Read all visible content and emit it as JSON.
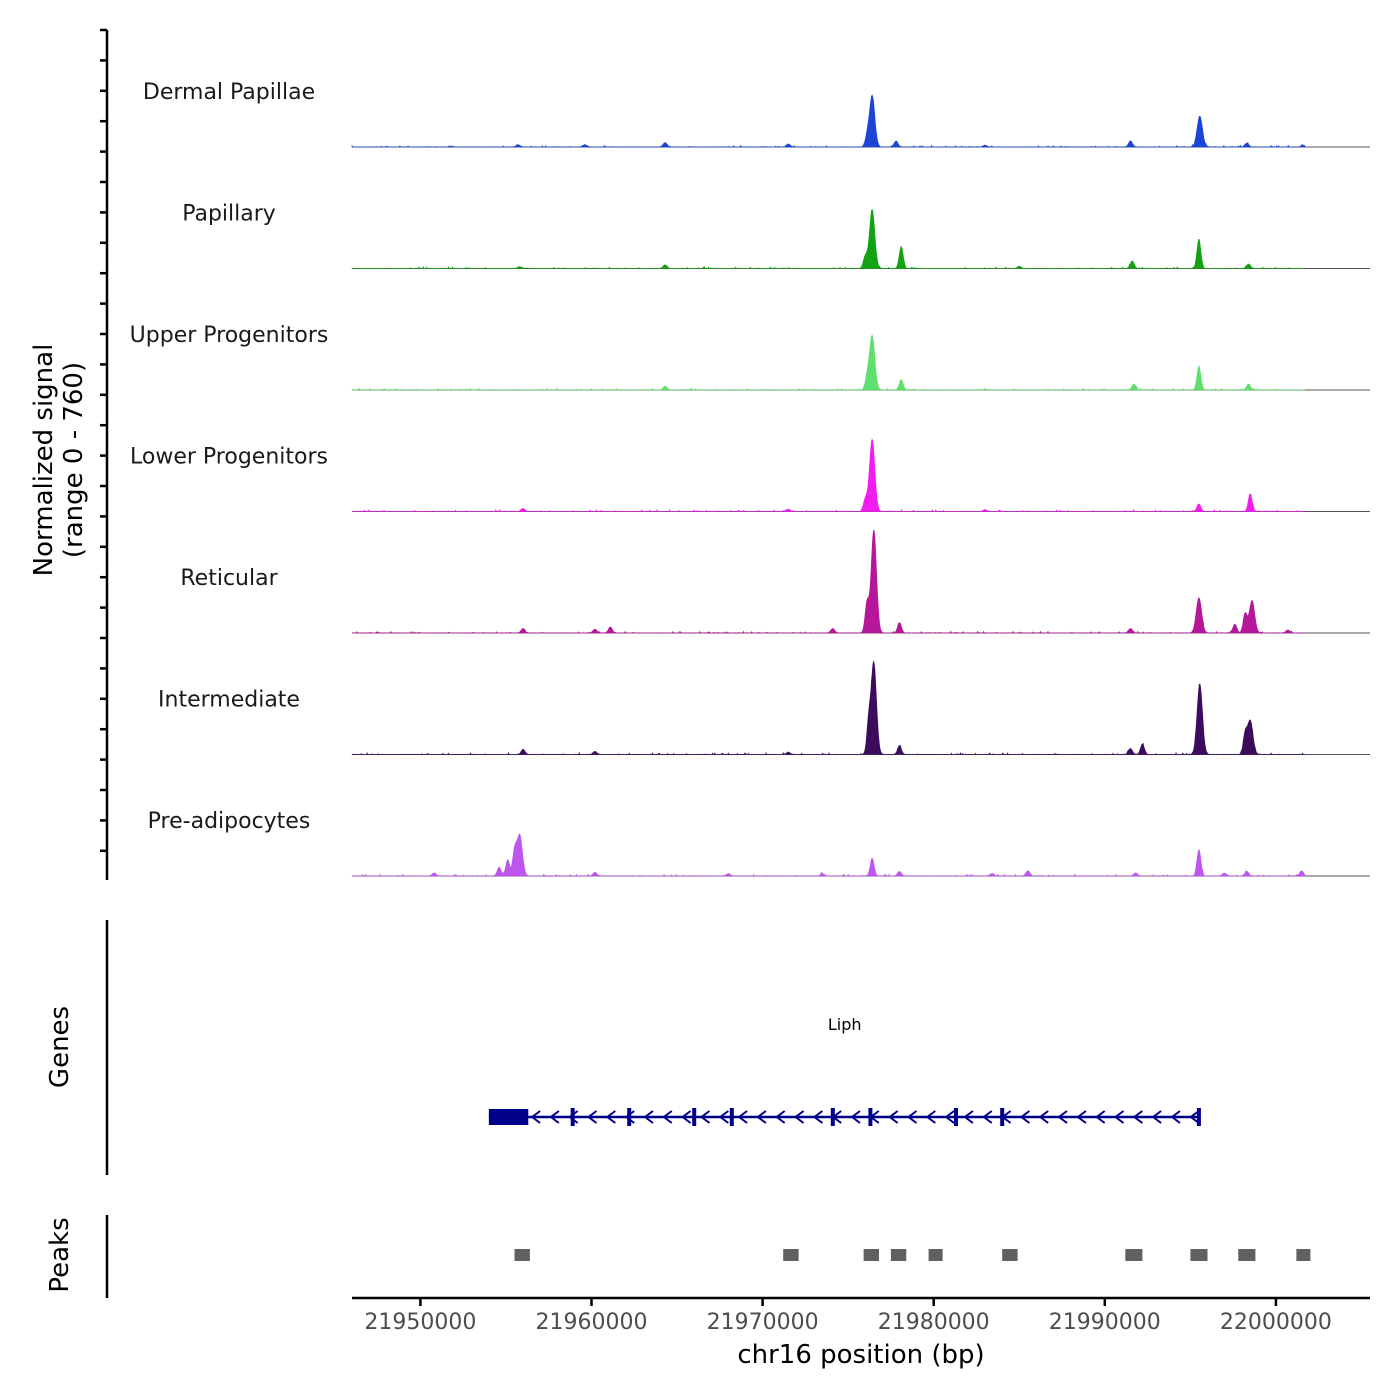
{
  "chart_data": {
    "type": "area",
    "xlabel": "chr16 position (bp)",
    "ylabel": "Normalized signal",
    "ylabel_sub": "(range 0 - 760)",
    "y_range": [
      0,
      760
    ],
    "xlim": [
      21946000,
      22005500
    ],
    "x_ticks": [
      21950000,
      21960000,
      21970000,
      21980000,
      21990000,
      22000000
    ],
    "x_tick_labels": [
      "21950000",
      "21960000",
      "21970000",
      "21980000",
      "21990000",
      "22000000"
    ],
    "genes_panel_label": "Genes",
    "peaks_panel_label": "Peaks",
    "series": [
      {
        "name": "Dermal Papillae",
        "color": "#1c44d6",
        "peaks": [
          [
            21976400,
            350
          ],
          [
            21976100,
            60
          ],
          [
            21977800,
            40
          ],
          [
            21995550,
            210
          ],
          [
            21991500,
            40
          ],
          [
            21998300,
            25
          ],
          [
            21964300,
            30
          ],
          [
            21971500,
            20
          ],
          [
            21959600,
            15
          ],
          [
            21955700,
            15
          ],
          [
            21983000,
            12
          ],
          [
            22001600,
            12
          ]
        ]
      },
      {
        "name": "Papillary",
        "color": "#11a311",
        "peaks": [
          [
            21976400,
            400
          ],
          [
            21976000,
            80
          ],
          [
            21978100,
            150
          ],
          [
            21995500,
            200
          ],
          [
            21991600,
            50
          ],
          [
            21998400,
            30
          ],
          [
            21964300,
            25
          ],
          [
            21985000,
            15
          ],
          [
            21955800,
            12
          ]
        ]
      },
      {
        "name": "Upper Progenitors",
        "color": "#5fdf6c",
        "peaks": [
          [
            21976400,
            370
          ],
          [
            21976100,
            70
          ],
          [
            21978100,
            70
          ],
          [
            21995500,
            160
          ],
          [
            21991700,
            40
          ],
          [
            21998400,
            40
          ],
          [
            21964300,
            25
          ]
        ]
      },
      {
        "name": "Lower Progenitors",
        "color": "#f21cf0",
        "peaks": [
          [
            21976400,
            490
          ],
          [
            21976000,
            80
          ],
          [
            21995500,
            50
          ],
          [
            21998500,
            120
          ],
          [
            21956000,
            20
          ],
          [
            21971500,
            15
          ],
          [
            21983000,
            12
          ]
        ]
      },
      {
        "name": "Reticular",
        "color": "#b5169a",
        "peaks": [
          [
            21976500,
            700
          ],
          [
            21976100,
            200
          ],
          [
            21978000,
            70
          ],
          [
            21995500,
            240
          ],
          [
            21998600,
            220
          ],
          [
            21998200,
            130
          ],
          [
            21997600,
            60
          ],
          [
            21961100,
            40
          ],
          [
            21960200,
            25
          ],
          [
            21956000,
            30
          ],
          [
            21974100,
            30
          ],
          [
            21991500,
            30
          ],
          [
            22000700,
            20
          ]
        ]
      },
      {
        "name": "Intermediate",
        "color": "#3b0c5c",
        "peaks": [
          [
            21976500,
            620
          ],
          [
            21976200,
            200
          ],
          [
            21978000,
            60
          ],
          [
            21995550,
            480
          ],
          [
            21998500,
            230
          ],
          [
            21998200,
            130
          ],
          [
            21992200,
            70
          ],
          [
            21991500,
            40
          ],
          [
            21956000,
            35
          ],
          [
            21960200,
            20
          ],
          [
            21971500,
            15
          ]
        ]
      },
      {
        "name": "Pre-adipocytes",
        "color": "#bd55ee",
        "peaks": [
          [
            21955800,
            280
          ],
          [
            21955500,
            160
          ],
          [
            21955100,
            110
          ],
          [
            21954600,
            60
          ],
          [
            21976400,
            120
          ],
          [
            21995500,
            180
          ],
          [
            21985500,
            35
          ],
          [
            21978000,
            30
          ],
          [
            21950800,
            20
          ],
          [
            21960200,
            25
          ],
          [
            22001500,
            35
          ],
          [
            21998300,
            30
          ],
          [
            21997000,
            20
          ],
          [
            21991800,
            20
          ],
          [
            21983400,
            15
          ],
          [
            21968000,
            15
          ],
          [
            21973500,
            15
          ]
        ]
      }
    ],
    "gene": {
      "name": "Liph",
      "strand": "-",
      "start": 21954000,
      "end": 21995600,
      "color": "#00008b",
      "utr": [
        21954000,
        21956300
      ],
      "exons": [
        21958900,
        21962200,
        21966000,
        21968200,
        21974100,
        21976300,
        21981300,
        21984000,
        21995500
      ]
    },
    "peaks_track": {
      "color": "#606060",
      "regions": [
        [
          21955500,
          21956400
        ],
        [
          21971200,
          21972100
        ],
        [
          21975900,
          21976800
        ],
        [
          21977500,
          21978400
        ],
        [
          21979700,
          21980400
        ],
        [
          21984000,
          21984900
        ],
        [
          21991200,
          21992200
        ],
        [
          21995000,
          21996000
        ],
        [
          21997800,
          21998800
        ],
        [
          22001200,
          22002000
        ]
      ]
    }
  }
}
